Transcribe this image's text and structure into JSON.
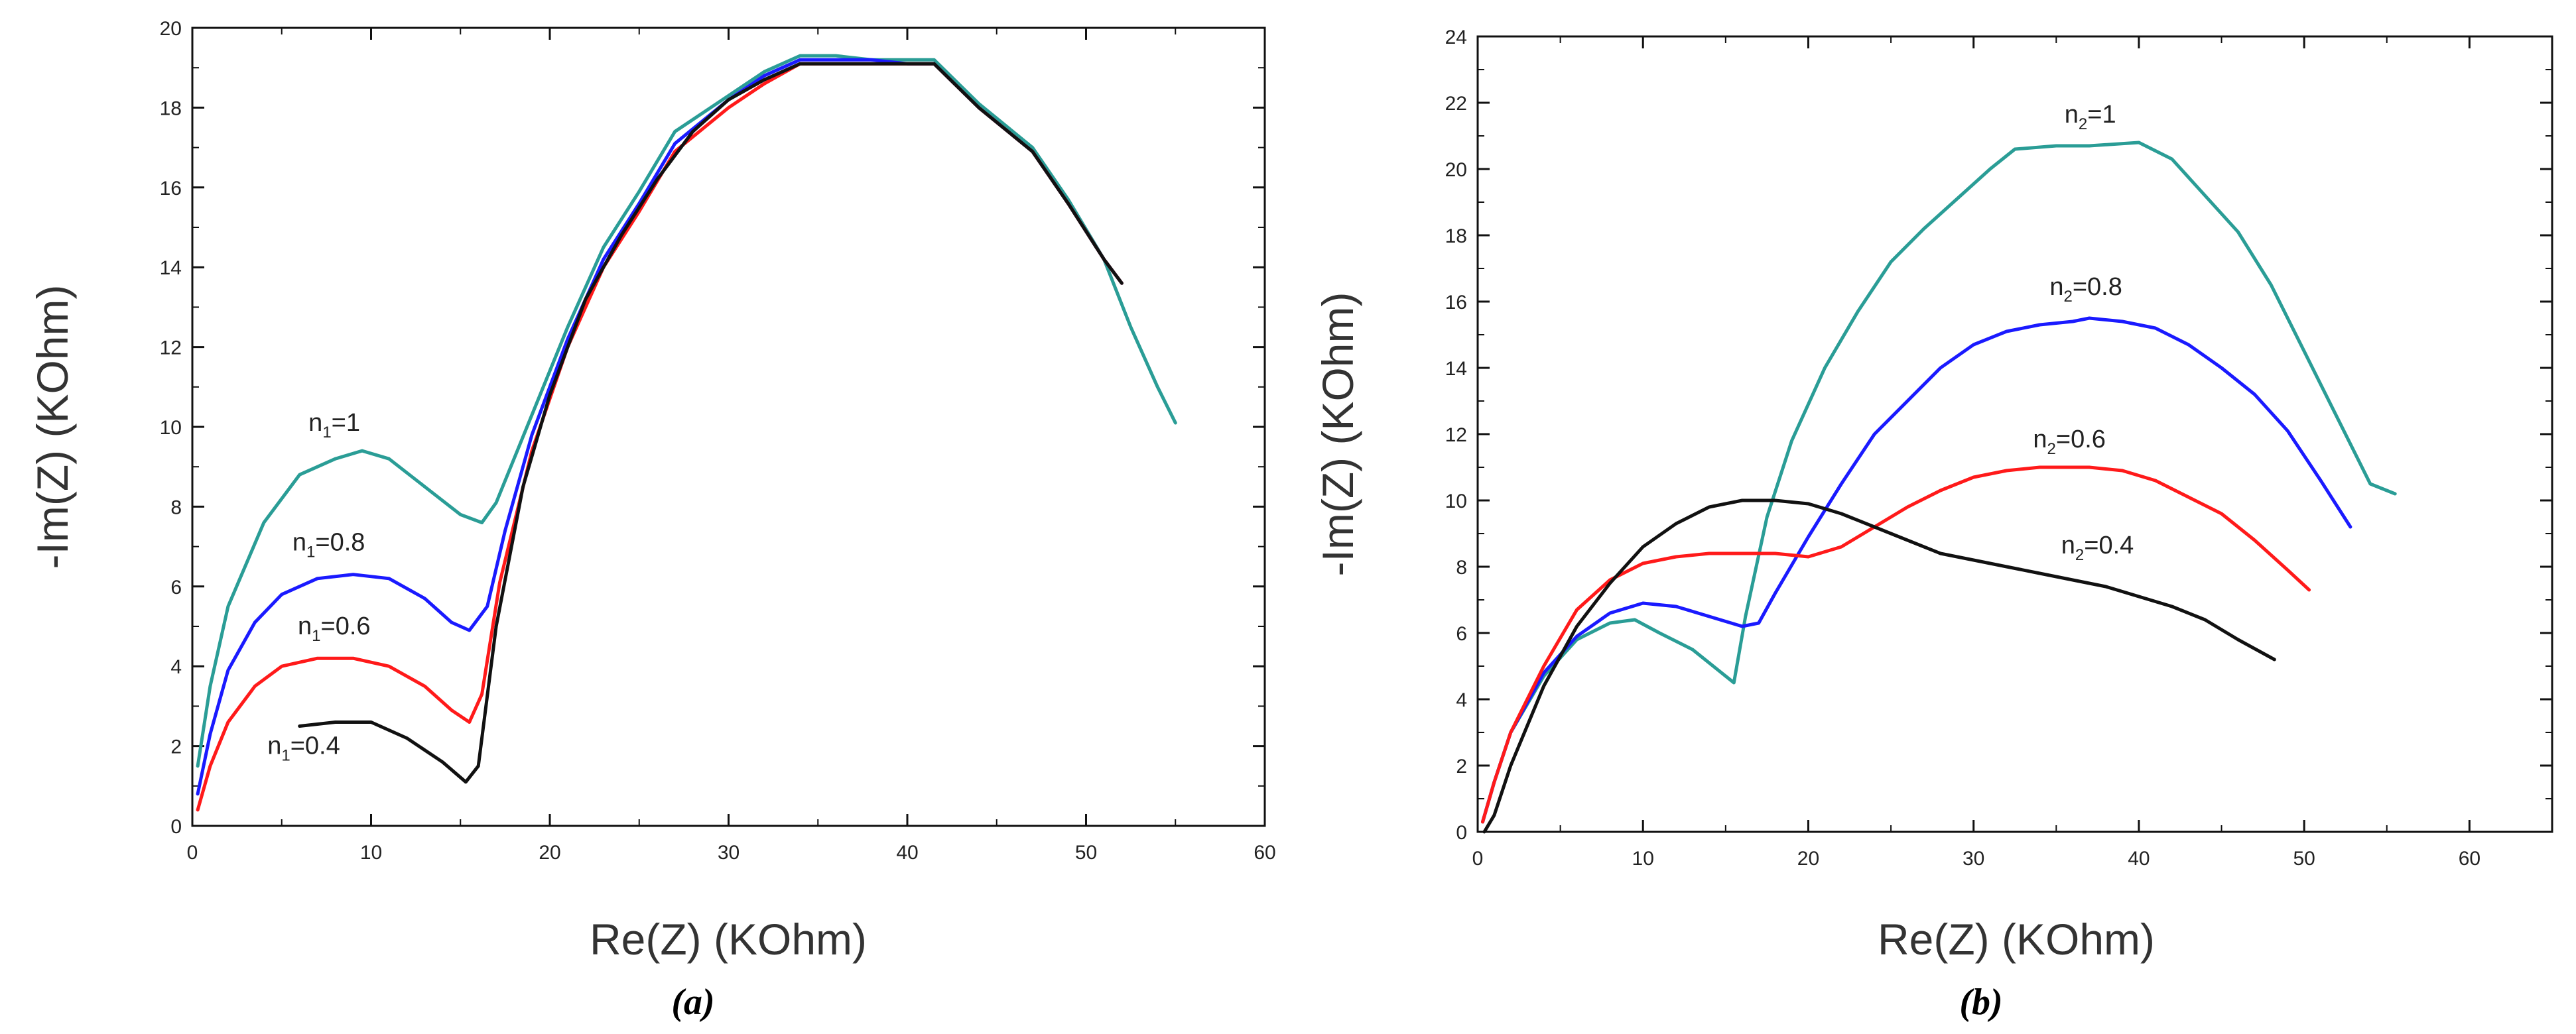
{
  "chart_data": [
    {
      "type": "line",
      "panel_caption": "(a)",
      "xlabel": "Re(Z) (KOhm)",
      "ylabel": "-Im(Z) (KOhm)",
      "xlim": [
        0,
        60
      ],
      "ylim": [
        0,
        20
      ],
      "xticks": [
        0,
        10,
        20,
        30,
        40,
        50,
        60
      ],
      "yticks": [
        0,
        2,
        4,
        6,
        8,
        10,
        12,
        14,
        16,
        18,
        20
      ],
      "series": [
        {
          "name": "n1=1",
          "label_main": "n",
          "label_sub": "1",
          "label_rest": "=1",
          "label_at": [
            6.5,
            9.9
          ],
          "color": "#2a9d96",
          "points": [
            [
              0.3,
              1.5
            ],
            [
              1,
              3.5
            ],
            [
              2,
              5.5
            ],
            [
              4,
              7.6
            ],
            [
              6,
              8.8
            ],
            [
              8,
              9.2
            ],
            [
              9.5,
              9.4
            ],
            [
              11,
              9.2
            ],
            [
              13,
              8.5
            ],
            [
              15,
              7.8
            ],
            [
              16.2,
              7.6
            ],
            [
              17,
              8.1
            ],
            [
              19,
              10.3
            ],
            [
              21,
              12.5
            ],
            [
              23,
              14.5
            ],
            [
              25,
              15.9
            ],
            [
              27,
              17.4
            ],
            [
              30,
              18.3
            ],
            [
              32,
              18.9
            ],
            [
              34,
              19.3
            ],
            [
              36,
              19.3
            ],
            [
              38,
              19.2
            ],
            [
              40,
              19.2
            ],
            [
              41.5,
              19.2
            ],
            [
              44,
              18.1
            ],
            [
              47,
              17
            ],
            [
              49,
              15.7
            ],
            [
              51,
              14.2
            ],
            [
              52.5,
              12.5
            ],
            [
              54,
              11
            ],
            [
              55,
              10.1
            ]
          ]
        },
        {
          "name": "n1=0.8",
          "label_main": "n",
          "label_sub": "1",
          "label_rest": "=0.8",
          "label_at": [
            5.6,
            6.9
          ],
          "color": "#1a1aff",
          "points": [
            [
              0.3,
              0.8
            ],
            [
              1,
              2.3
            ],
            [
              2,
              3.9
            ],
            [
              3.5,
              5.1
            ],
            [
              5,
              5.8
            ],
            [
              7,
              6.2
            ],
            [
              9,
              6.3
            ],
            [
              11,
              6.2
            ],
            [
              13,
              5.7
            ],
            [
              14.5,
              5.1
            ],
            [
              15.5,
              4.9
            ],
            [
              16.5,
              5.5
            ],
            [
              17.5,
              7.4
            ],
            [
              19,
              9.8
            ],
            [
              21,
              12.2
            ],
            [
              23,
              14.2
            ],
            [
              25,
              15.6
            ],
            [
              27,
              17.1
            ],
            [
              30,
              18.2
            ],
            [
              32,
              18.8
            ],
            [
              34,
              19.2
            ],
            [
              36,
              19.2
            ],
            [
              38,
              19.2
            ],
            [
              40,
              19.1
            ],
            [
              41.5,
              19.1
            ],
            [
              44,
              18
            ],
            [
              47,
              16.9
            ],
            [
              49,
              15.6
            ],
            [
              51,
              14.2
            ],
            [
              52,
              13.6
            ]
          ]
        },
        {
          "name": "n1=0.6",
          "label_main": "n",
          "label_sub": "1",
          "label_rest": "=0.6",
          "label_at": [
            5.9,
            4.8
          ],
          "color": "#ff1a1a",
          "points": [
            [
              0.3,
              0.4
            ],
            [
              1,
              1.5
            ],
            [
              2,
              2.6
            ],
            [
              3.5,
              3.5
            ],
            [
              5,
              4
            ],
            [
              7,
              4.2
            ],
            [
              9,
              4.2
            ],
            [
              11,
              4
            ],
            [
              13,
              3.5
            ],
            [
              14.5,
              2.9
            ],
            [
              15.5,
              2.6
            ],
            [
              16.2,
              3.3
            ],
            [
              17.2,
              6.1
            ],
            [
              19,
              9.4
            ],
            [
              21,
              12
            ],
            [
              23,
              14
            ],
            [
              25,
              15.4
            ],
            [
              27,
              16.9
            ],
            [
              30,
              18
            ],
            [
              32,
              18.6
            ],
            [
              34,
              19.1
            ],
            [
              36,
              19.1
            ],
            [
              38,
              19.1
            ],
            [
              40,
              19.1
            ],
            [
              41.5,
              19.1
            ],
            [
              44,
              18
            ],
            [
              47,
              16.9
            ],
            [
              49,
              15.6
            ],
            [
              51,
              14.2
            ],
            [
              52,
              13.6
            ]
          ]
        },
        {
          "name": "n1=0.4",
          "label_main": "n",
          "label_sub": "1",
          "label_rest": "=0.4",
          "label_at": [
            4.2,
            1.8
          ],
          "color": "#111111",
          "points": [
            [
              6,
              2.5
            ],
            [
              8,
              2.6
            ],
            [
              10,
              2.6
            ],
            [
              12,
              2.2
            ],
            [
              14,
              1.6
            ],
            [
              15.3,
              1.1
            ],
            [
              16,
              1.5
            ],
            [
              17,
              5
            ],
            [
              18.5,
              8.5
            ],
            [
              20,
              10.8
            ],
            [
              22,
              13.2
            ],
            [
              24,
              14.8
            ],
            [
              26,
              16.2
            ],
            [
              28,
              17.4
            ],
            [
              30,
              18.2
            ],
            [
              32,
              18.7
            ],
            [
              34,
              19.1
            ],
            [
              36,
              19.1
            ],
            [
              38,
              19.1
            ],
            [
              40,
              19.1
            ],
            [
              41.5,
              19.1
            ],
            [
              44,
              18
            ],
            [
              47,
              16.9
            ],
            [
              49,
              15.6
            ],
            [
              51,
              14.2
            ],
            [
              52,
              13.6
            ]
          ]
        }
      ]
    },
    {
      "type": "line",
      "panel_caption": "(b)",
      "xlabel": "Re(Z) (KOhm)",
      "ylabel": "-Im(Z) (KOhm)",
      "xlim": [
        0,
        65
      ],
      "ylim": [
        0,
        24
      ],
      "xticks": [
        0,
        10,
        20,
        30,
        40,
        50,
        60
      ],
      "yticks": [
        0,
        2,
        4,
        6,
        8,
        10,
        12,
        14,
        16,
        18,
        20,
        22,
        24
      ],
      "series": [
        {
          "name": "n2=1",
          "label_main": "n",
          "label_sub": "2",
          "label_rest": "=1",
          "label_at": [
            35.5,
            21.4
          ],
          "color": "#2a9d96",
          "points": [
            [
              0.3,
              0.3
            ],
            [
              1,
              1.5
            ],
            [
              2,
              3
            ],
            [
              4,
              4.7
            ],
            [
              6,
              5.8
            ],
            [
              8,
              6.3
            ],
            [
              9.5,
              6.4
            ],
            [
              11,
              6
            ],
            [
              13,
              5.5
            ],
            [
              15,
              4.7
            ],
            [
              15.5,
              4.5
            ],
            [
              16.2,
              6.5
            ],
            [
              17.5,
              9.5
            ],
            [
              19,
              11.8
            ],
            [
              21,
              14
            ],
            [
              23,
              15.7
            ],
            [
              25,
              17.2
            ],
            [
              27,
              18.2
            ],
            [
              29,
              19.1
            ],
            [
              31,
              20
            ],
            [
              32.5,
              20.6
            ],
            [
              35,
              20.7
            ],
            [
              37,
              20.7
            ],
            [
              40,
              20.8
            ],
            [
              42,
              20.3
            ],
            [
              44,
              19.2
            ],
            [
              46,
              18.1
            ],
            [
              48,
              16.5
            ],
            [
              50,
              14.5
            ],
            [
              52,
              12.5
            ],
            [
              54,
              10.5
            ],
            [
              55.5,
              10.2
            ]
          ]
        },
        {
          "name": "n2=0.8",
          "label_main": "n",
          "label_sub": "2",
          "label_rest": "=0.8",
          "label_at": [
            34.6,
            16.2
          ],
          "color": "#1a1aff",
          "points": [
            [
              0.3,
              0.3
            ],
            [
              1,
              1.5
            ],
            [
              2,
              3
            ],
            [
              4,
              4.8
            ],
            [
              6,
              5.9
            ],
            [
              8,
              6.6
            ],
            [
              10,
              6.9
            ],
            [
              12,
              6.8
            ],
            [
              14,
              6.5
            ],
            [
              16,
              6.2
            ],
            [
              17,
              6.3
            ],
            [
              18,
              7.2
            ],
            [
              20,
              8.9
            ],
            [
              22,
              10.5
            ],
            [
              24,
              12
            ],
            [
              26,
              13
            ],
            [
              28,
              14
            ],
            [
              30,
              14.7
            ],
            [
              32,
              15.1
            ],
            [
              34,
              15.3
            ],
            [
              36,
              15.4
            ],
            [
              37,
              15.5
            ],
            [
              39,
              15.4
            ],
            [
              41,
              15.2
            ],
            [
              43,
              14.7
            ],
            [
              45,
              14
            ],
            [
              47,
              13.2
            ],
            [
              49,
              12.1
            ],
            [
              51,
              10.6
            ],
            [
              52.8,
              9.2
            ]
          ]
        },
        {
          "name": "n2=0.6",
          "label_main": "n",
          "label_sub": "2",
          "label_rest": "=0.6",
          "label_at": [
            33.6,
            11.6
          ],
          "color": "#ff1a1a",
          "points": [
            [
              0.3,
              0.3
            ],
            [
              1,
              1.5
            ],
            [
              2,
              3
            ],
            [
              4,
              5
            ],
            [
              6,
              6.7
            ],
            [
              8,
              7.6
            ],
            [
              10,
              8.1
            ],
            [
              12,
              8.3
            ],
            [
              14,
              8.4
            ],
            [
              16,
              8.4
            ],
            [
              18,
              8.4
            ],
            [
              20,
              8.3
            ],
            [
              22,
              8.6
            ],
            [
              24,
              9.2
            ],
            [
              26,
              9.8
            ],
            [
              28,
              10.3
            ],
            [
              30,
              10.7
            ],
            [
              32,
              10.9
            ],
            [
              34,
              11
            ],
            [
              36,
              11
            ],
            [
              37,
              11
            ],
            [
              39,
              10.9
            ],
            [
              41,
              10.6
            ],
            [
              43,
              10.1
            ],
            [
              45,
              9.6
            ],
            [
              47,
              8.8
            ],
            [
              49,
              7.9
            ],
            [
              50.3,
              7.3
            ]
          ]
        },
        {
          "name": "n2=0.4",
          "label_main": "n",
          "label_sub": "2",
          "label_rest": "=0.4",
          "label_at": [
            35.3,
            8.4
          ],
          "color": "#111111",
          "points": [
            [
              0.4,
              0
            ],
            [
              1,
              0.5
            ],
            [
              2,
              2
            ],
            [
              4,
              4.4
            ],
            [
              6,
              6.2
            ],
            [
              8,
              7.5
            ],
            [
              10,
              8.6
            ],
            [
              12,
              9.3
            ],
            [
              14,
              9.8
            ],
            [
              16,
              10
            ],
            [
              18,
              10
            ],
            [
              20,
              9.9
            ],
            [
              22,
              9.6
            ],
            [
              24,
              9.2
            ],
            [
              26,
              8.8
            ],
            [
              28,
              8.4
            ],
            [
              30,
              8.2
            ],
            [
              32,
              8
            ],
            [
              34,
              7.8
            ],
            [
              36,
              7.6
            ],
            [
              38,
              7.4
            ],
            [
              40,
              7.1
            ],
            [
              42,
              6.8
            ],
            [
              44,
              6.4
            ],
            [
              46,
              5.8
            ],
            [
              48.2,
              5.2
            ]
          ]
        }
      ]
    }
  ]
}
